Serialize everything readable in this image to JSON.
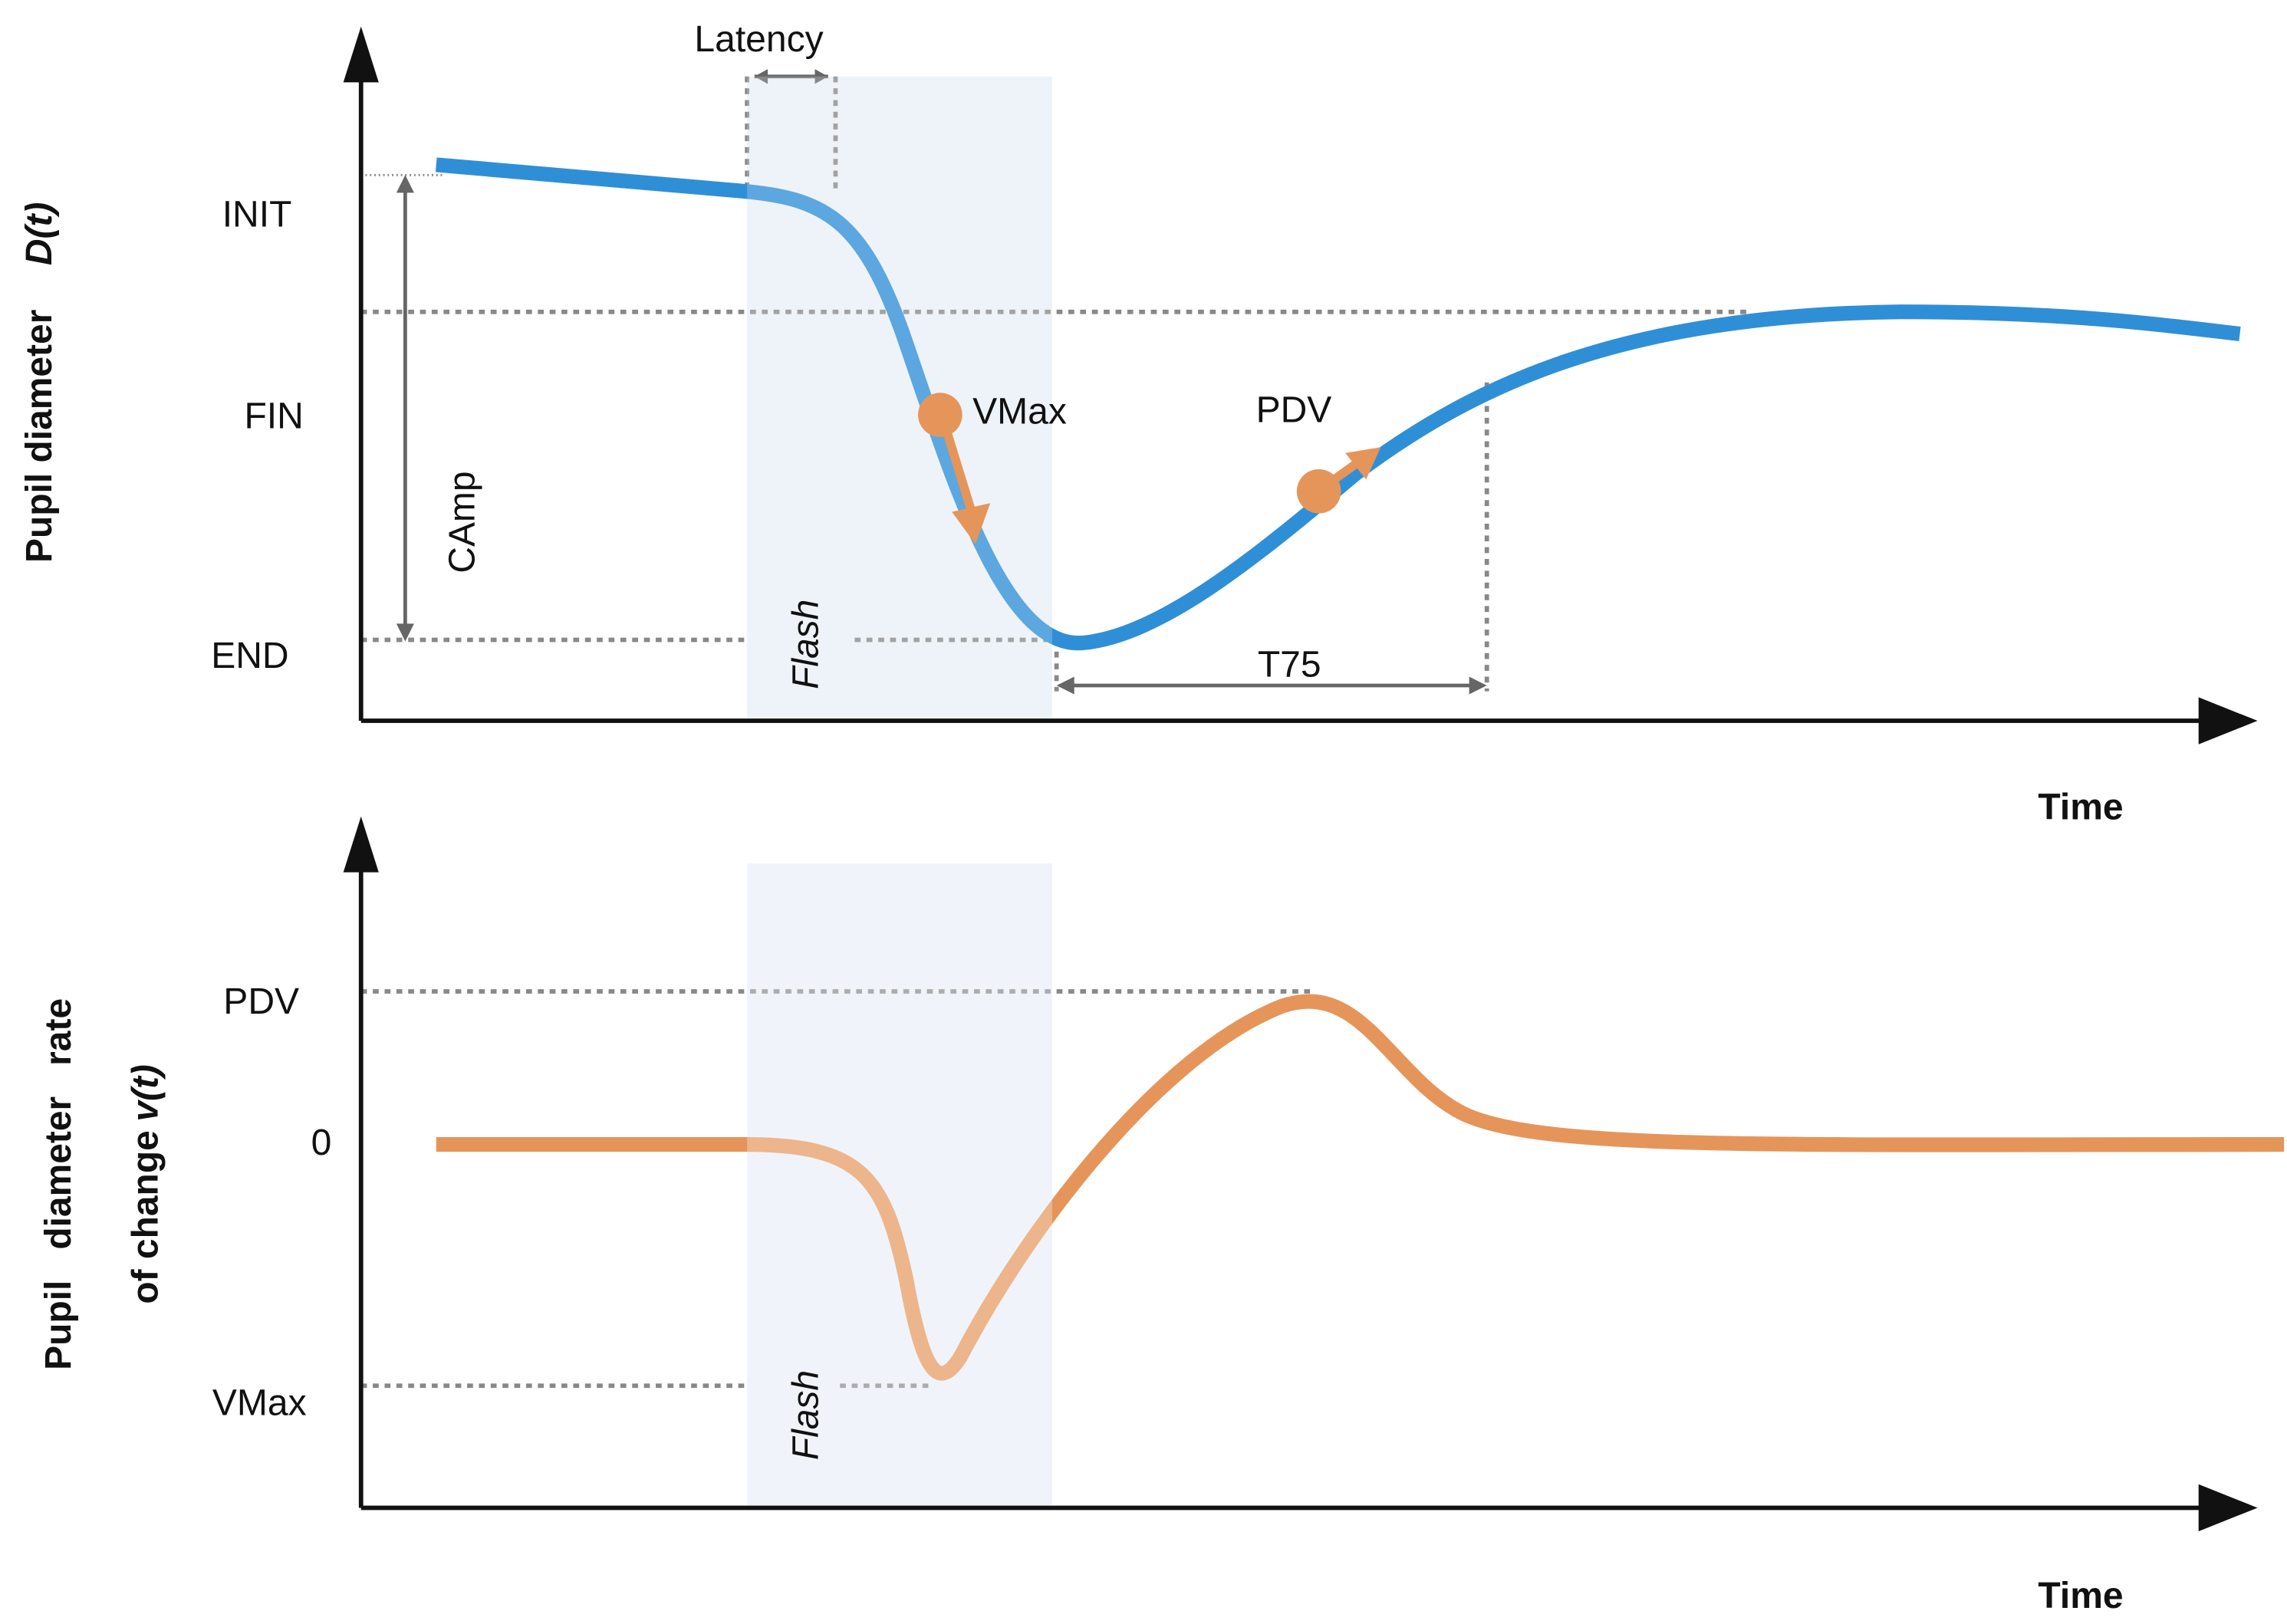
{
  "top_panel": {
    "y_axis_label": "Pupil diameter",
    "y_axis_symbol": "D(t)",
    "x_axis_label": "Time",
    "levels": [
      "INIT",
      "FIN",
      "END"
    ],
    "annotations": {
      "latency": "Latency",
      "amplitude": "CAmp",
      "stimulus": "Flash",
      "max_velocity": "VMax",
      "peak_dilation_velocity": "PDV",
      "recovery_time": "T75"
    }
  },
  "bottom_panel": {
    "y_axis_label_line1": "Pupil   diameter   rate",
    "y_axis_label_line2": "of change",
    "y_axis_symbol": "v(t)",
    "x_axis_label": "Time",
    "levels": [
      "PDV",
      "0",
      "VMax"
    ],
    "stimulus": "Flash"
  }
}
